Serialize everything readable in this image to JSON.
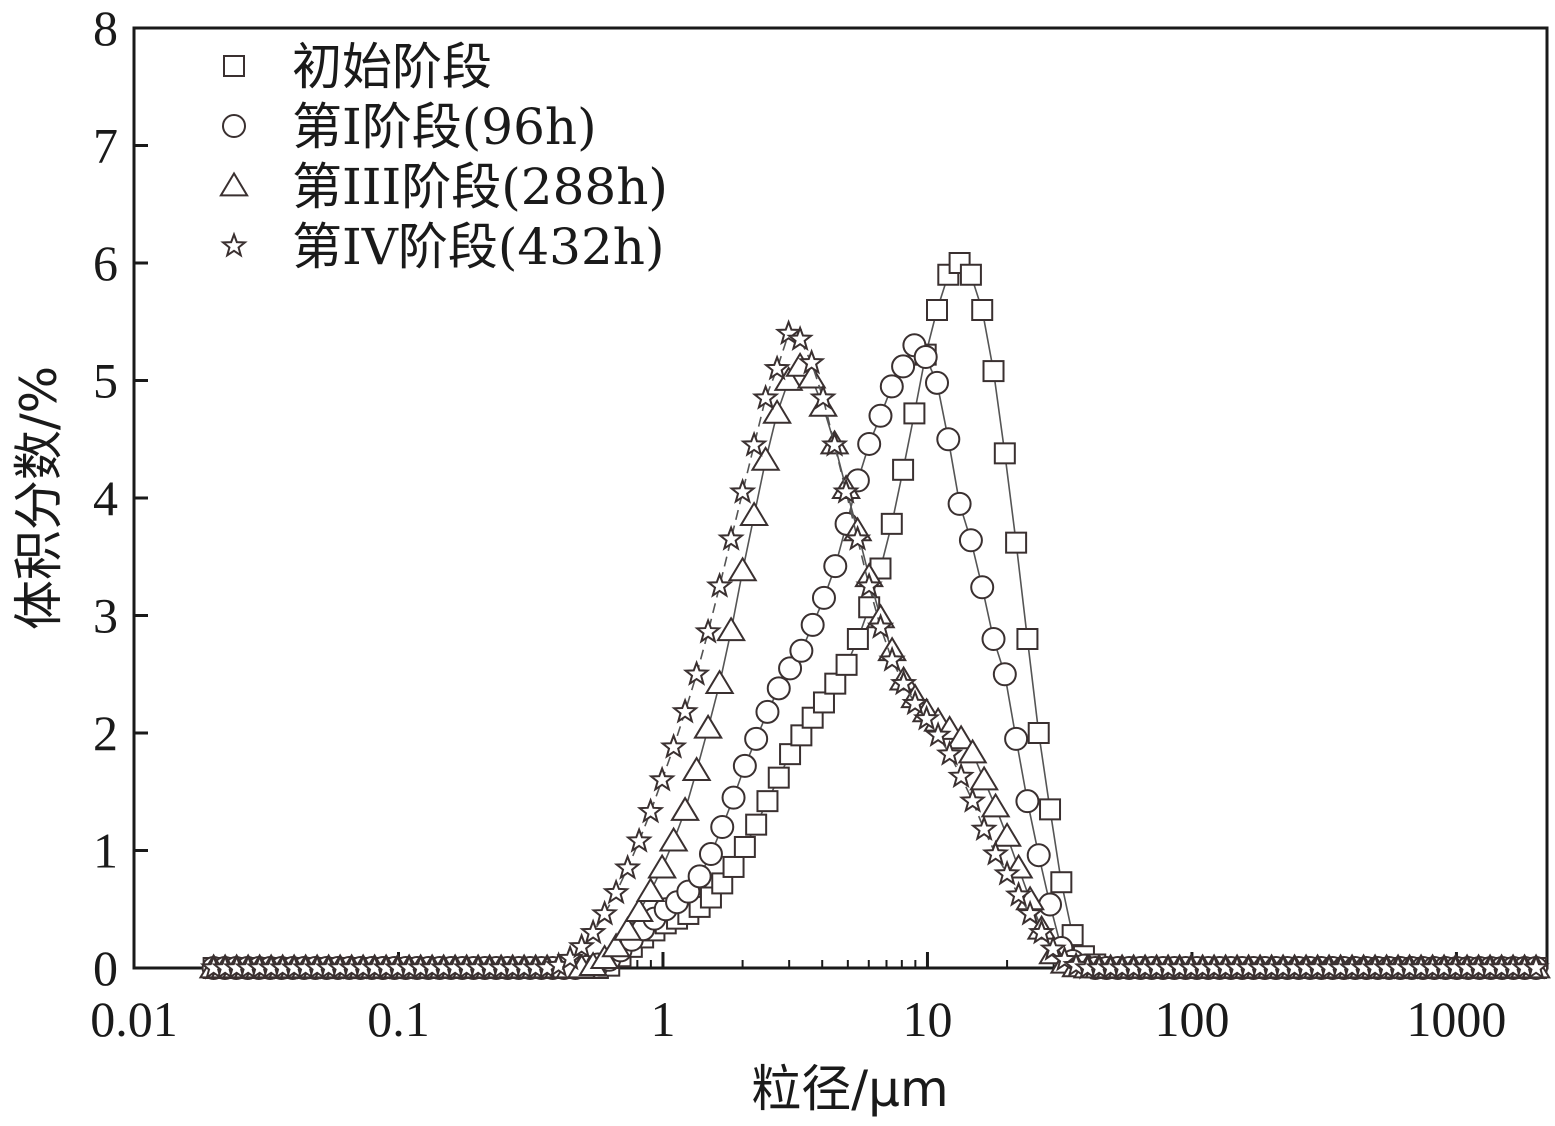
{
  "chart_data": {
    "type": "scatter",
    "xlabel": "粒径/μm",
    "ylabel": "体积分数/%",
    "xscale": "log",
    "xlim": [
      0.01,
      2200
    ],
    "ylim": [
      0,
      8
    ],
    "xticks": [
      0.01,
      0.1,
      1,
      10,
      100,
      1000
    ],
    "xtick_labels": [
      "0.01",
      "0.1",
      "1",
      "10",
      "100",
      "1000"
    ],
    "yticks": [
      0,
      1,
      2,
      3,
      4,
      5,
      6,
      7,
      8
    ],
    "ytick_labels": [
      "0",
      "1",
      "2",
      "3",
      "4",
      "5",
      "6",
      "7",
      "8"
    ],
    "grid": false,
    "legend_position": "top-left",
    "x_range": [
      0.02,
      2000
    ],
    "series": [
      {
        "name": "初始阶段",
        "marker": "square",
        "line_style": "solid",
        "color": "#3a3030",
        "values": [
          0,
          0,
          0,
          0,
          0,
          0,
          0,
          0,
          0,
          0,
          0,
          0,
          0,
          0,
          0,
          0,
          0,
          0,
          0,
          0,
          0,
          0,
          0,
          0,
          0,
          0,
          0,
          0,
          0,
          0,
          0,
          0,
          0,
          0,
          0,
          0.02,
          0.1,
          0.18,
          0.26,
          0.32,
          0.38,
          0.42,
          0.46,
          0.52,
          0.6,
          0.72,
          0.86,
          1.03,
          1.22,
          1.42,
          1.62,
          1.82,
          1.98,
          2.13,
          2.26,
          2.42,
          2.58,
          2.8,
          3.07,
          3.4,
          3.78,
          4.24,
          4.72,
          5.22,
          5.6,
          5.9,
          6.0,
          5.9,
          5.6,
          5.08,
          4.38,
          3.62,
          2.8,
          2.0,
          1.35,
          0.73,
          0.28,
          0.1,
          0.03,
          0,
          0,
          0,
          0,
          0,
          0,
          0,
          0,
          0,
          0,
          0,
          0,
          0,
          0,
          0,
          0,
          0,
          0,
          0,
          0,
          0,
          0,
          0,
          0,
          0,
          0,
          0,
          0,
          0,
          0,
          0,
          0,
          0,
          0,
          0,
          0,
          0,
          0,
          0
        ]
      },
      {
        "name": "第I阶段(96h)",
        "marker": "circle",
        "line_style": "solid",
        "color": "#3a3030",
        "values": [
          0,
          0,
          0,
          0,
          0,
          0,
          0,
          0,
          0,
          0,
          0,
          0,
          0,
          0,
          0,
          0,
          0,
          0,
          0,
          0,
          0,
          0,
          0,
          0,
          0,
          0,
          0,
          0,
          0,
          0,
          0,
          0,
          0,
          0.01,
          0.03,
          0.07,
          0.15,
          0.24,
          0.33,
          0.42,
          0.5,
          0.56,
          0.65,
          0.78,
          0.97,
          1.2,
          1.45,
          1.72,
          1.95,
          2.18,
          2.38,
          2.55,
          2.7,
          2.92,
          3.15,
          3.42,
          3.78,
          4.15,
          4.46,
          4.7,
          4.95,
          5.12,
          5.3,
          5.2,
          4.98,
          4.5,
          3.95,
          3.64,
          3.24,
          2.8,
          2.5,
          1.95,
          1.42,
          0.96,
          0.54,
          0.17,
          0.06,
          0.02,
          0,
          0,
          0,
          0,
          0,
          0,
          0,
          0,
          0,
          0,
          0,
          0,
          0,
          0,
          0,
          0,
          0,
          0,
          0,
          0,
          0,
          0,
          0,
          0,
          0,
          0,
          0,
          0,
          0,
          0,
          0,
          0,
          0,
          0,
          0,
          0,
          0,
          0,
          0,
          0
        ]
      },
      {
        "name": "第III阶段(288h)",
        "marker": "triangle",
        "line_style": "solid",
        "color": "#3a3030",
        "values": [
          0,
          0,
          0,
          0,
          0,
          0,
          0,
          0,
          0,
          0,
          0,
          0,
          0,
          0,
          0,
          0,
          0,
          0,
          0,
          0,
          0,
          0,
          0,
          0,
          0,
          0,
          0,
          0,
          0,
          0,
          0,
          0,
          0,
          0.02,
          0.08,
          0.18,
          0.32,
          0.48,
          0.65,
          0.85,
          1.08,
          1.34,
          1.68,
          2.04,
          2.42,
          2.87,
          3.38,
          3.85,
          4.32,
          4.72,
          5.0,
          5.12,
          5.02,
          4.78,
          4.46,
          4.08,
          3.72,
          3.33,
          2.98,
          2.7,
          2.45,
          2.3,
          2.18,
          2.1,
          2.03,
          1.95,
          1.83,
          1.6,
          1.37,
          1.12,
          0.85,
          0.58,
          0.33,
          0.12,
          0.04,
          0.01,
          0,
          0,
          0,
          0,
          0,
          0,
          0,
          0,
          0,
          0,
          0,
          0,
          0,
          0,
          0,
          0,
          0,
          0,
          0,
          0,
          0,
          0,
          0,
          0,
          0,
          0,
          0,
          0,
          0,
          0,
          0,
          0,
          0,
          0,
          0,
          0,
          0,
          0,
          0,
          0
        ]
      },
      {
        "name": "第IV阶段(432h)",
        "marker": "star",
        "line_style": "dashed",
        "color": "#3a3030",
        "values": [
          0,
          0,
          0,
          0,
          0,
          0,
          0,
          0,
          0,
          0,
          0,
          0,
          0,
          0,
          0,
          0,
          0,
          0,
          0,
          0,
          0,
          0,
          0,
          0,
          0,
          0,
          0,
          0,
          0,
          0,
          0.02,
          0.08,
          0.18,
          0.3,
          0.46,
          0.64,
          0.85,
          1.08,
          1.33,
          1.6,
          1.88,
          2.18,
          2.5,
          2.86,
          3.25,
          3.65,
          4.05,
          4.45,
          4.85,
          5.1,
          5.4,
          5.35,
          5.15,
          4.85,
          4.45,
          4.05,
          3.65,
          3.25,
          2.9,
          2.62,
          2.42,
          2.25,
          2.12,
          1.98,
          1.82,
          1.63,
          1.42,
          1.18,
          0.97,
          0.8,
          0.62,
          0.46,
          0.3,
          0.16,
          0.07,
          0.02,
          0,
          0,
          0,
          0,
          0,
          0,
          0,
          0,
          0,
          0,
          0,
          0,
          0,
          0,
          0,
          0,
          0,
          0,
          0,
          0,
          0,
          0,
          0,
          0,
          0,
          0,
          0,
          0,
          0,
          0,
          0,
          0,
          0,
          0,
          0,
          0,
          0,
          0,
          0,
          0
        ]
      }
    ]
  }
}
